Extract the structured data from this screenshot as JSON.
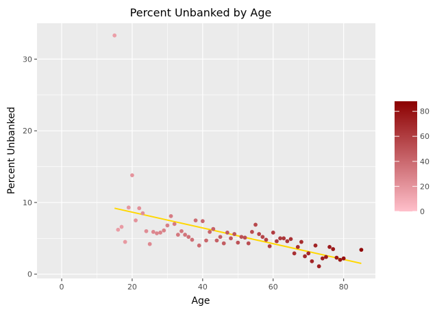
{
  "chart_data": {
    "type": "scatter",
    "title": "Percent Unbanked by Age",
    "xlabel": "Age",
    "ylabel": "Percent Unbanked",
    "xlim": [
      -7,
      89
    ],
    "ylim": [
      -0.6,
      35
    ],
    "xticks": [
      0,
      20,
      40,
      60,
      80
    ],
    "yticks": [
      0,
      10,
      20,
      30
    ],
    "grid": true,
    "panel_background": "#ebebeb",
    "grid_color": "#ffffff",
    "colorbar": {
      "range": [
        0,
        88
      ],
      "ticks": [
        0,
        20,
        40,
        60,
        80
      ],
      "low_color": "#ffc0cb",
      "high_color": "#8b0000",
      "placement": "right"
    },
    "trend_line": {
      "color": "#ffd700",
      "start": [
        15,
        9.2
      ],
      "end": [
        85,
        1.5
      ]
    },
    "points": [
      [
        15,
        33.3
      ],
      [
        16,
        6.2
      ],
      [
        17,
        6.6
      ],
      [
        18,
        4.5
      ],
      [
        19,
        9.3
      ],
      [
        20,
        13.8
      ],
      [
        21,
        7.5
      ],
      [
        22,
        9.2
      ],
      [
        23,
        8.5
      ],
      [
        24,
        6.0
      ],
      [
        25,
        4.2
      ],
      [
        26,
        5.9
      ],
      [
        27,
        5.7
      ],
      [
        28,
        5.8
      ],
      [
        29,
        6.1
      ],
      [
        30,
        6.8
      ],
      [
        31,
        8.1
      ],
      [
        32,
        7.0
      ],
      [
        33,
        5.5
      ],
      [
        34,
        6.0
      ],
      [
        35,
        5.5
      ],
      [
        36,
        5.2
      ],
      [
        37,
        4.8
      ],
      [
        38,
        7.5
      ],
      [
        39,
        4.0
      ],
      [
        40,
        7.4
      ],
      [
        41,
        4.7
      ],
      [
        42,
        5.9
      ],
      [
        43,
        6.3
      ],
      [
        44,
        4.7
      ],
      [
        45,
        5.2
      ],
      [
        46,
        4.3
      ],
      [
        47,
        5.8
      ],
      [
        48,
        5.0
      ],
      [
        49,
        5.6
      ],
      [
        50,
        4.4
      ],
      [
        51,
        5.2
      ],
      [
        52,
        5.1
      ],
      [
        53,
        4.3
      ],
      [
        54,
        5.9
      ],
      [
        55,
        6.9
      ],
      [
        56,
        5.6
      ],
      [
        57,
        5.2
      ],
      [
        58,
        4.8
      ],
      [
        59,
        3.9
      ],
      [
        60,
        5.8
      ],
      [
        61,
        4.6
      ],
      [
        62,
        5.0
      ],
      [
        63,
        5.0
      ],
      [
        64,
        4.6
      ],
      [
        65,
        4.9
      ],
      [
        66,
        2.9
      ],
      [
        67,
        3.8
      ],
      [
        68,
        4.5
      ],
      [
        69,
        2.5
      ],
      [
        70,
        2.9
      ],
      [
        71,
        1.8
      ],
      [
        72,
        4.0
      ],
      [
        73,
        1.1
      ],
      [
        74,
        2.2
      ],
      [
        75,
        2.4
      ],
      [
        76,
        3.8
      ],
      [
        77,
        3.5
      ],
      [
        78,
        2.3
      ],
      [
        79,
        2.0
      ],
      [
        80,
        2.2
      ],
      [
        85,
        3.4
      ]
    ]
  }
}
